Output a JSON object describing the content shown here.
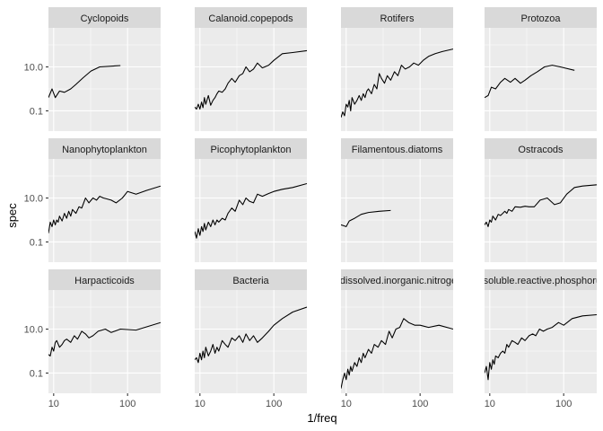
{
  "chart_data": {
    "type": "line",
    "layout": "facet-grid-3x4",
    "x_scale": "log10",
    "y_scale": "log10",
    "xlabel": "1/freq",
    "ylabel": "spec",
    "xlim": [
      8.5,
      280
    ],
    "ylim": [
      0.012,
      600
    ],
    "x_ticks": [
      10,
      100
    ],
    "x_tick_labels": [
      "10",
      "100"
    ],
    "y_ticks": [
      0.1,
      10
    ],
    "y_tick_labels": [
      "0.1",
      "10.0"
    ],
    "grid": true,
    "facets": [
      {
        "title": "Cyclopoids",
        "x": [
          8.5,
          9.5,
          10.5,
          12,
          14,
          17,
          20,
          25,
          32,
          42,
          80
        ],
        "y": [
          0.4,
          1.0,
          0.4,
          0.8,
          0.7,
          1.0,
          1.6,
          3.2,
          6.5,
          10.0,
          11.5
        ]
      },
      {
        "title": "Calanoid.copepods",
        "x": [
          8.5,
          9,
          9.5,
          10,
          10.5,
          11,
          11.5,
          12,
          13,
          14,
          15,
          16,
          17,
          18,
          20,
          22,
          24,
          27,
          30,
          34,
          38,
          42,
          47,
          53,
          60,
          70,
          85,
          100,
          130,
          180,
          280
        ],
        "y": [
          0.15,
          0.12,
          0.2,
          0.12,
          0.25,
          0.14,
          0.4,
          0.2,
          0.5,
          0.18,
          0.3,
          0.4,
          0.6,
          0.8,
          0.7,
          1.0,
          1.8,
          3.0,
          2.0,
          4.0,
          5.0,
          10.0,
          6.0,
          8.0,
          15.0,
          9.0,
          12.0,
          20.0,
          40.0,
          45.0,
          55.0
        ]
      },
      {
        "title": "Rotifers",
        "x": [
          8.5,
          9,
          9.5,
          10,
          10.5,
          11,
          11.5,
          12,
          13,
          14,
          15,
          16,
          17,
          18,
          19,
          20,
          22,
          24,
          26,
          28,
          30,
          33,
          36,
          40,
          45,
          50,
          56,
          63,
          72,
          82,
          95,
          110,
          130,
          160,
          200,
          280
        ],
        "y": [
          0.05,
          0.09,
          0.06,
          0.2,
          0.15,
          0.3,
          0.1,
          0.4,
          0.2,
          0.3,
          0.5,
          0.3,
          0.6,
          0.4,
          0.8,
          1.0,
          0.6,
          1.6,
          1.0,
          5.0,
          3.0,
          1.8,
          4.0,
          2.5,
          6.0,
          4.0,
          12.0,
          8.0,
          10.0,
          15.0,
          12.0,
          20.0,
          30.0,
          40.0,
          50.0,
          65.0
        ]
      },
      {
        "title": "Protozoa",
        "x": [
          8.5,
          9.5,
          10.5,
          12,
          14,
          16,
          19,
          22,
          26,
          30,
          36,
          44,
          55,
          70,
          90,
          140
        ],
        "y": [
          0.4,
          0.5,
          1.2,
          1.0,
          2.0,
          3.0,
          2.0,
          3.0,
          1.8,
          2.5,
          4.0,
          6.0,
          10.0,
          12.0,
          10.0,
          7.0
        ]
      },
      {
        "title": "Nanophytoplankton",
        "x": [
          8.5,
          9,
          9.5,
          10,
          10.5,
          11,
          11.5,
          12,
          13,
          14,
          15,
          16,
          17,
          18,
          20,
          22,
          24,
          27,
          30,
          34,
          38,
          42,
          47,
          53,
          60,
          70,
          85,
          100,
          130,
          180,
          280
        ],
        "y": [
          0.25,
          0.8,
          0.5,
          1.0,
          0.6,
          1.0,
          0.8,
          1.5,
          0.9,
          2.0,
          1.2,
          2.5,
          1.5,
          3.0,
          2.0,
          4.0,
          3.5,
          10.0,
          6.0,
          10.0,
          8.0,
          12.0,
          10.0,
          9.0,
          8.0,
          6.0,
          10.0,
          20.0,
          15.0,
          22.0,
          35.0
        ]
      },
      {
        "title": "Picophytoplankton",
        "x": [
          8.5,
          9,
          9.5,
          10,
          10.5,
          11,
          11.5,
          12,
          13,
          14,
          15,
          16,
          17,
          18,
          20,
          22,
          24,
          27,
          30,
          34,
          38,
          42,
          47,
          53,
          60,
          70,
          85,
          100,
          130,
          180,
          280
        ],
        "y": [
          0.3,
          0.15,
          0.4,
          0.2,
          0.5,
          0.3,
          0.7,
          0.35,
          0.8,
          0.5,
          1.0,
          0.6,
          1.0,
          0.8,
          1.2,
          1.0,
          2.0,
          3.5,
          2.5,
          8.0,
          5.0,
          10.0,
          7.0,
          6.0,
          15.0,
          12.0,
          16.0,
          20.0,
          25.0,
          30.0,
          45.0
        ]
      },
      {
        "title": "Filamentous.diatoms",
        "x": [
          8.5,
          10,
          11,
          13,
          16,
          20,
          28,
          40
        ],
        "y": [
          0.6,
          0.5,
          0.9,
          1.2,
          1.8,
          2.2,
          2.5,
          2.7
        ]
      },
      {
        "title": "Ostracods",
        "x": [
          8.5,
          9,
          9.5,
          10,
          10.5,
          11,
          12,
          13,
          14,
          15,
          16,
          17,
          18,
          20,
          22,
          26,
          30,
          34,
          40,
          48,
          60,
          75,
          90,
          110,
          140,
          180,
          280
        ],
        "y": [
          0.6,
          0.8,
          0.5,
          1.0,
          0.8,
          1.5,
          1.0,
          1.8,
          1.6,
          2.0,
          2.5,
          2.0,
          3.0,
          2.5,
          4.0,
          3.8,
          4.2,
          4.0,
          4.0,
          8.0,
          10.0,
          5.0,
          6.0,
          15.0,
          30.0,
          35.0,
          40.0
        ]
      },
      {
        "title": "Harpacticoids",
        "x": [
          8.5,
          9,
          9.5,
          10,
          10.5,
          11,
          12,
          13,
          14,
          15,
          17,
          19,
          21,
          24,
          27,
          30,
          34,
          40,
          50,
          60,
          80,
          130,
          280
        ],
        "y": [
          0.7,
          0.6,
          1.5,
          1.0,
          2.5,
          3.0,
          1.5,
          2.0,
          3.0,
          3.5,
          2.5,
          5.0,
          3.5,
          8.0,
          6.0,
          4.0,
          5.0,
          8.0,
          10.0,
          7.0,
          10.0,
          9.0,
          20.0
        ]
      },
      {
        "title": "Bacteria",
        "x": [
          8.5,
          9,
          9.5,
          10,
          10.5,
          11,
          11.5,
          12,
          13,
          14,
          15,
          16,
          17,
          18,
          20,
          22,
          24,
          27,
          30,
          34,
          38,
          42,
          47,
          53,
          60,
          70,
          85,
          100,
          130,
          180,
          280
        ],
        "y": [
          0.4,
          0.5,
          0.3,
          0.8,
          0.4,
          1.0,
          0.5,
          1.5,
          0.6,
          1.0,
          2.0,
          0.8,
          1.5,
          1.0,
          3.0,
          2.0,
          1.5,
          4.0,
          3.0,
          5.0,
          2.5,
          6.0,
          3.0,
          5.0,
          2.5,
          4.0,
          8.0,
          15.0,
          30.0,
          60.0,
          100.0
        ]
      },
      {
        "title": "...dissolved.inorganic.nitrogen",
        "x": [
          8.5,
          9,
          9.5,
          10,
          10.5,
          11,
          11.5,
          12,
          13,
          14,
          15,
          16,
          17,
          18,
          20,
          22,
          24,
          27,
          30,
          34,
          38,
          42,
          47,
          53,
          60,
          70,
          85,
          100,
          130,
          180,
          280
        ],
        "y": [
          0.02,
          0.05,
          0.1,
          0.05,
          0.15,
          0.08,
          0.2,
          0.12,
          0.3,
          0.2,
          0.5,
          0.3,
          0.8,
          0.5,
          1.2,
          0.8,
          2.0,
          1.5,
          3.0,
          2.0,
          8.0,
          4.0,
          10.0,
          12.0,
          30.0,
          20.0,
          15.0,
          15.0,
          12.0,
          15.0,
          10.0
        ]
      },
      {
        "title": "...soluble.reactive.phosphorus",
        "x": [
          8.5,
          9,
          9.5,
          10,
          10.5,
          11,
          11.5,
          12,
          13,
          14,
          15,
          16,
          17,
          18,
          20,
          22,
          24,
          27,
          30,
          34,
          38,
          42,
          47,
          53,
          60,
          70,
          85,
          100,
          130,
          180,
          280
        ],
        "y": [
          0.1,
          0.2,
          0.05,
          0.3,
          0.15,
          0.4,
          0.25,
          0.6,
          0.5,
          0.8,
          1.0,
          0.8,
          2.0,
          1.5,
          3.0,
          2.5,
          2.0,
          4.0,
          3.0,
          5.0,
          6.0,
          5.0,
          10.0,
          8.0,
          10.0,
          12.0,
          20.0,
          15.0,
          30.0,
          40.0,
          45.0
        ]
      }
    ]
  }
}
